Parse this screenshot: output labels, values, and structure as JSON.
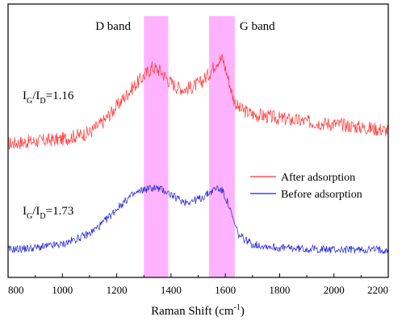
{
  "chart_data": {
    "type": "line",
    "xlabel_base": "Raman Shift (cm",
    "xlabel_sup": "-1",
    "xlabel_end": ")",
    "xlim": [
      800,
      2200
    ],
    "x_ticks": [
      "800",
      "1000",
      "1200",
      "1400",
      "1600",
      "1800",
      "2000",
      "2200"
    ],
    "grid": false,
    "legend_position": "right",
    "bands": [
      {
        "label": "D band",
        "range": [
          1300,
          1390
        ],
        "color": "#ff99ff"
      },
      {
        "label": "G band",
        "range": [
          1540,
          1635
        ],
        "color": "#ff99ff"
      }
    ],
    "annotations": [
      {
        "series": "After adsorption",
        "ratio_text": "1.16"
      },
      {
        "series": "Before adsorption",
        "ratio_text": "1.73"
      }
    ],
    "series": [
      {
        "name": "After adsorption",
        "color": "#ff3333",
        "x": [
          800,
          900,
          1000,
          1100,
          1150,
          1200,
          1250,
          1300,
          1330,
          1360,
          1390,
          1420,
          1450,
          1480,
          1510,
          1540,
          1570,
          1590,
          1610,
          1630,
          1650,
          1700,
          1800,
          1900,
          2000,
          2100,
          2200
        ],
        "y": [
          0.06,
          0.08,
          0.1,
          0.16,
          0.26,
          0.4,
          0.55,
          0.68,
          0.76,
          0.73,
          0.64,
          0.58,
          0.56,
          0.58,
          0.62,
          0.7,
          0.82,
          0.84,
          0.66,
          0.47,
          0.38,
          0.33,
          0.29,
          0.26,
          0.24,
          0.21,
          0.18
        ]
      },
      {
        "name": "Before adsorption",
        "color": "#1f1fd6",
        "x": [
          800,
          900,
          1000,
          1100,
          1150,
          1200,
          1250,
          1300,
          1340,
          1380,
          1420,
          1450,
          1480,
          1510,
          1540,
          1570,
          1590,
          1610,
          1630,
          1650,
          1700,
          1800,
          1900,
          2000,
          2100,
          2200
        ],
        "y": [
          0.04,
          0.06,
          0.1,
          0.22,
          0.34,
          0.5,
          0.64,
          0.72,
          0.74,
          0.7,
          0.62,
          0.58,
          0.59,
          0.62,
          0.68,
          0.74,
          0.7,
          0.56,
          0.36,
          0.2,
          0.1,
          0.06,
          0.05,
          0.04,
          0.04,
          0.04
        ]
      }
    ]
  }
}
